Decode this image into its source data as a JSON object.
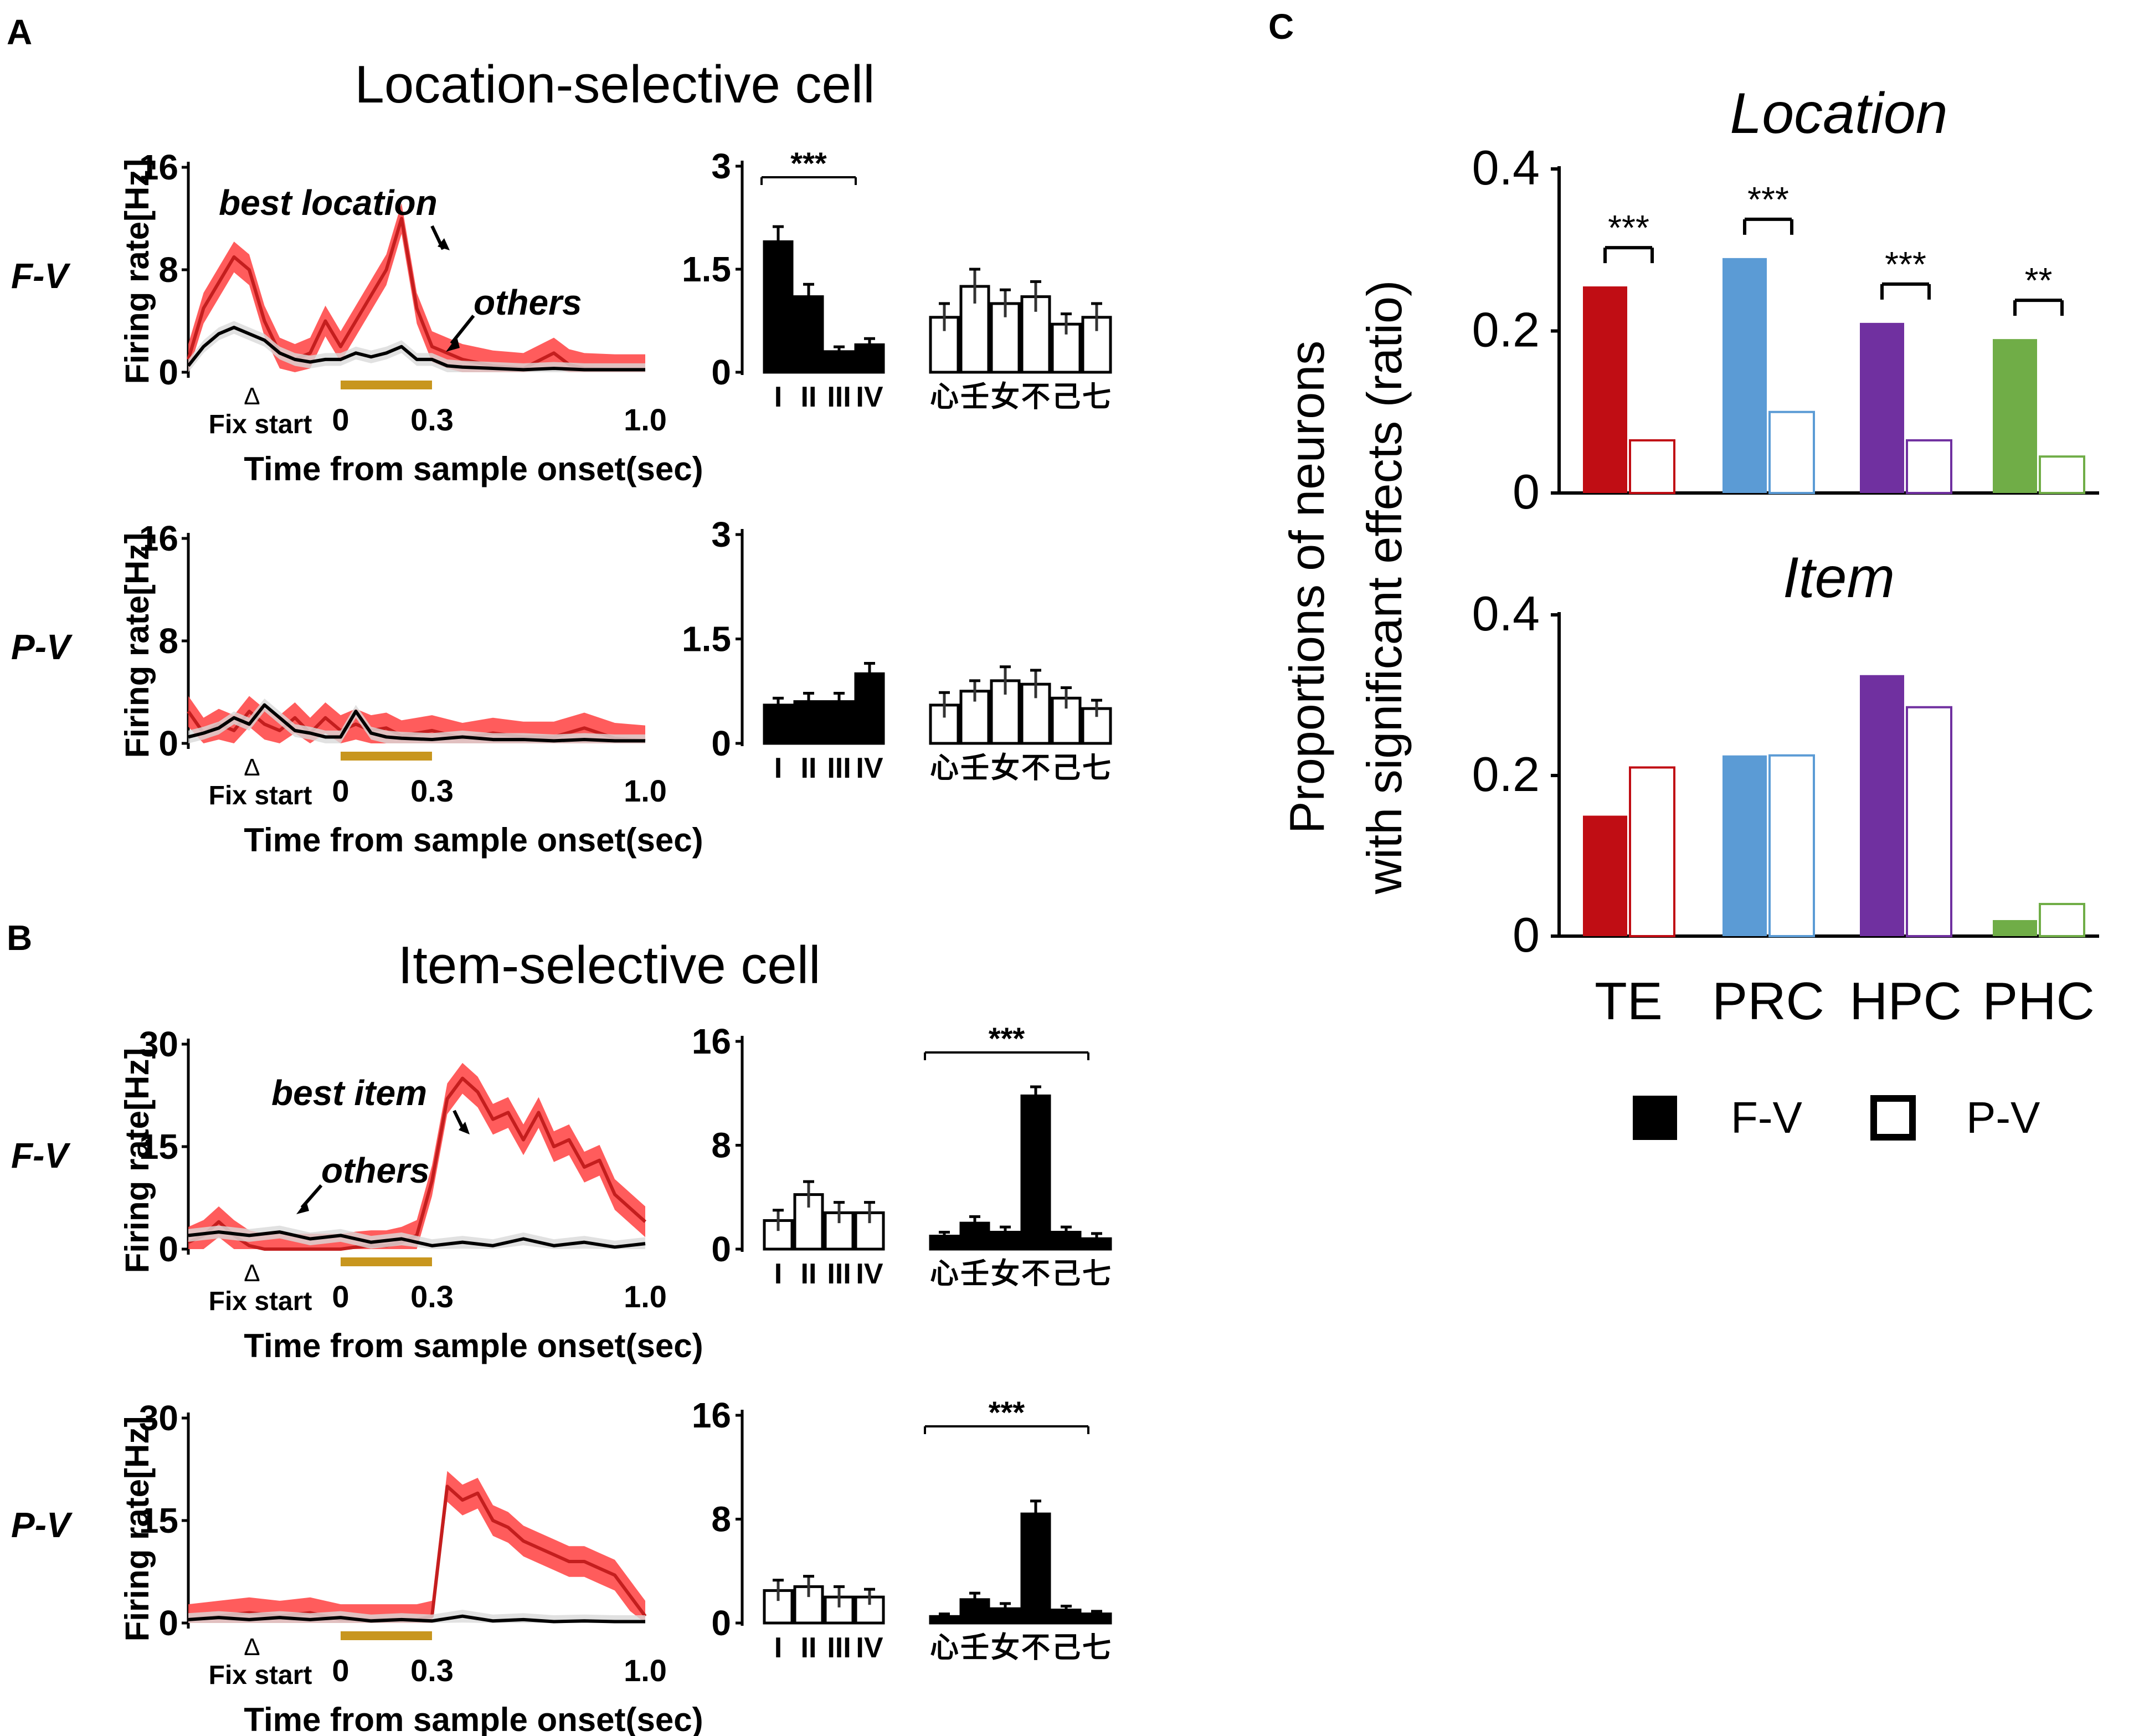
{
  "panels": {
    "A": {
      "letter": "A",
      "title": "Location-selective cell"
    },
    "B": {
      "letter": "B",
      "title": "Item-selective cell"
    },
    "C": {
      "letter": "C"
    }
  },
  "conditions": {
    "fv": "F-V",
    "pv": "P-V"
  },
  "psth_common": {
    "ylabel": "Firing rate[Hz]",
    "xlabel": "Time from sample onset(sec)",
    "fix_label": "Fix start",
    "fix_marker": "Δ",
    "x_ticks": [
      "0",
      "0.3",
      "1.0"
    ],
    "x_range": [
      -0.5,
      1.0
    ],
    "sample_window": [
      0,
      0.3
    ],
    "sample_bar_color": "#c8961e"
  },
  "location_labels": [
    "I",
    "II",
    "III",
    "IV"
  ],
  "item_labels": [
    "心",
    "壬",
    "女",
    "不",
    "己",
    "七"
  ],
  "legend": {
    "fv": "F-V",
    "pv": "P-V"
  },
  "chart_data": [
    {
      "id": "A-FV-psth",
      "type": "line",
      "ylim": [
        0,
        16
      ],
      "y_ticks": [
        "16",
        "8",
        "0"
      ],
      "annotations": [
        "best location",
        "others"
      ],
      "series": [
        {
          "name": "best location",
          "color": "#c41e1e",
          "x": [
            -0.5,
            -0.45,
            -0.4,
            -0.35,
            -0.3,
            -0.25,
            -0.2,
            -0.15,
            -0.1,
            -0.05,
            0,
            0.05,
            0.1,
            0.15,
            0.2,
            0.25,
            0.3,
            0.35,
            0.4,
            0.5,
            0.6,
            0.7,
            0.75,
            0.8,
            0.9,
            1.0
          ],
          "y": [
            1,
            5,
            7,
            9,
            8,
            4,
            1.5,
            1,
            1.5,
            4,
            2,
            4,
            6,
            8,
            12,
            5,
            2,
            1.5,
            1,
            0.5,
            0.3,
            1.5,
            0.6,
            0.3,
            0.2,
            0.2
          ]
        },
        {
          "name": "others",
          "color": "#000000",
          "x": [
            -0.5,
            -0.45,
            -0.4,
            -0.35,
            -0.3,
            -0.25,
            -0.2,
            -0.15,
            -0.1,
            -0.05,
            0,
            0.05,
            0.1,
            0.15,
            0.2,
            0.25,
            0.3,
            0.35,
            0.4,
            0.5,
            0.6,
            0.7,
            0.8,
            0.9,
            1.0
          ],
          "y": [
            0.5,
            2,
            3,
            3.5,
            3,
            2.5,
            1.5,
            1,
            0.8,
            1,
            1,
            1.5,
            1.2,
            1.5,
            2,
            1,
            1,
            0.5,
            0.4,
            0.3,
            0.2,
            0.3,
            0.2,
            0.2,
            0.2
          ]
        }
      ]
    },
    {
      "id": "A-PV-psth",
      "type": "line",
      "ylim": [
        0,
        16
      ],
      "y_ticks": [
        "16",
        "8",
        "0"
      ],
      "series": [
        {
          "name": "best location",
          "color": "#c41e1e",
          "x": [
            -0.5,
            -0.45,
            -0.4,
            -0.35,
            -0.3,
            -0.25,
            -0.2,
            -0.15,
            -0.1,
            -0.05,
            0,
            0.05,
            0.1,
            0.15,
            0.2,
            0.3,
            0.4,
            0.5,
            0.6,
            0.7,
            0.8,
            0.9,
            1.0
          ],
          "y": [
            2.5,
            0.8,
            1.5,
            1,
            2.5,
            1.5,
            1,
            2,
            0.8,
            2,
            1,
            1.5,
            1,
            1.2,
            0.6,
            1,
            0.4,
            0.8,
            0.5,
            0.5,
            1.2,
            0.4,
            0.2
          ]
        },
        {
          "name": "others",
          "color": "#000000",
          "x": [
            -0.5,
            -0.45,
            -0.4,
            -0.35,
            -0.3,
            -0.25,
            -0.2,
            -0.15,
            -0.1,
            -0.05,
            0,
            0.05,
            0.1,
            0.15,
            0.2,
            0.3,
            0.4,
            0.5,
            0.6,
            0.7,
            0.8,
            0.9,
            1.0
          ],
          "y": [
            0.5,
            0.8,
            1.2,
            2,
            1.5,
            3,
            2,
            1,
            0.8,
            0.5,
            0.5,
            2.5,
            0.8,
            0.5,
            0.4,
            0.3,
            0.5,
            0.3,
            0.3,
            0.2,
            0.3,
            0.2,
            0.2
          ]
        }
      ]
    },
    {
      "id": "B-FV-psth",
      "type": "line",
      "ylim": [
        0,
        30
      ],
      "y_ticks": [
        "30",
        "15",
        "0"
      ],
      "annotations": [
        "best item",
        "others"
      ],
      "series": [
        {
          "name": "best item",
          "color": "#c41e1e",
          "x": [
            -0.5,
            -0.45,
            -0.4,
            -0.35,
            -0.3,
            -0.25,
            -0.2,
            -0.15,
            -0.1,
            -0.05,
            0,
            0.05,
            0.1,
            0.15,
            0.2,
            0.25,
            0.3,
            0.35,
            0.4,
            0.45,
            0.5,
            0.55,
            0.6,
            0.65,
            0.7,
            0.75,
            0.8,
            0.85,
            0.9,
            0.95,
            1.0
          ],
          "y": [
            1,
            2,
            4,
            2,
            0.5,
            0,
            0,
            0,
            0,
            0,
            0,
            0.3,
            0.5,
            0.5,
            1,
            2,
            10,
            22,
            25,
            23,
            19,
            20,
            16,
            20,
            15,
            16,
            12,
            13,
            8,
            6,
            4
          ]
        },
        {
          "name": "others",
          "color": "#000000",
          "x": [
            -0.5,
            -0.4,
            -0.3,
            -0.2,
            -0.1,
            0,
            0.1,
            0.2,
            0.3,
            0.4,
            0.5,
            0.6,
            0.7,
            0.8,
            0.9,
            1.0
          ],
          "y": [
            2,
            2.5,
            2,
            2.5,
            1.5,
            2,
            1,
            1.5,
            0.5,
            1,
            0.5,
            1.5,
            0.5,
            1,
            0.3,
            0.8
          ]
        }
      ]
    },
    {
      "id": "B-PV-psth",
      "type": "line",
      "ylim": [
        0,
        30
      ],
      "y_ticks": [
        "30",
        "15",
        "0"
      ],
      "series": [
        {
          "name": "best item",
          "color": "#c41e1e",
          "x": [
            -0.5,
            -0.4,
            -0.3,
            -0.2,
            -0.1,
            0,
            0.1,
            0.2,
            0.25,
            0.3,
            0.35,
            0.4,
            0.45,
            0.5,
            0.55,
            0.6,
            0.65,
            0.7,
            0.75,
            0.8,
            0.85,
            0.9,
            0.95,
            1.0
          ],
          "y": [
            0.5,
            1,
            1.5,
            1,
            1.5,
            0.5,
            0.5,
            0.5,
            0.5,
            1,
            20,
            18,
            19,
            15,
            14,
            12,
            11,
            10,
            9,
            9,
            8,
            7,
            4,
            1
          ]
        },
        {
          "name": "others",
          "color": "#000000",
          "x": [
            -0.5,
            -0.4,
            -0.3,
            -0.2,
            -0.1,
            0,
            0.1,
            0.2,
            0.3,
            0.4,
            0.5,
            0.6,
            0.7,
            0.8,
            0.9,
            1.0
          ],
          "y": [
            0.5,
            0.8,
            0.5,
            0.8,
            0.5,
            0.8,
            0.3,
            0.5,
            0.3,
            1,
            0.3,
            0.5,
            0.2,
            0.3,
            0.2,
            0.2
          ]
        }
      ]
    },
    {
      "id": "A-FV-bars",
      "type": "bar",
      "ylim": [
        0,
        3
      ],
      "y_ticks": [
        "3",
        "1.5",
        "0"
      ],
      "sig": "***",
      "sig_group": "location",
      "location_values": [
        1.9,
        1.1,
        0.3,
        0.4
      ],
      "location_err": [
        0.22,
        0.18,
        0.07,
        0.09
      ],
      "location_filled": true,
      "item_values": [
        0.8,
        1.25,
        1.0,
        1.1,
        0.7,
        0.8
      ],
      "item_err": [
        0.2,
        0.25,
        0.2,
        0.22,
        0.15,
        0.2
      ],
      "item_filled": false
    },
    {
      "id": "A-PV-bars",
      "type": "bar",
      "ylim": [
        0,
        3
      ],
      "y_ticks": [
        "3",
        "1.5",
        "0"
      ],
      "location_values": [
        0.55,
        0.6,
        0.6,
        1.0
      ],
      "location_err": [
        0.1,
        0.12,
        0.12,
        0.15
      ],
      "location_filled": true,
      "item_values": [
        0.55,
        0.75,
        0.9,
        0.85,
        0.65,
        0.5
      ],
      "item_err": [
        0.18,
        0.15,
        0.2,
        0.2,
        0.15,
        0.12
      ],
      "item_filled": false
    },
    {
      "id": "B-FV-bars",
      "type": "bar",
      "ylim": [
        0,
        16
      ],
      "y_ticks": [
        "16",
        "8",
        "0"
      ],
      "sig": "***",
      "sig_group": "item",
      "location_values": [
        2.2,
        4.2,
        2.8,
        2.8
      ],
      "location_err": [
        0.8,
        1.0,
        0.8,
        0.8
      ],
      "location_filled": false,
      "item_values": [
        1.0,
        2.0,
        1.3,
        11.8,
        1.3,
        0.8
      ],
      "item_err": [
        0.3,
        0.5,
        0.4,
        0.7,
        0.4,
        0.4
      ],
      "item_filled": true
    },
    {
      "id": "B-PV-bars",
      "type": "bar",
      "ylim": [
        0,
        16
      ],
      "y_ticks": [
        "16",
        "8",
        "0"
      ],
      "sig": "***",
      "sig_group": "item",
      "location_values": [
        2.5,
        2.8,
        2.0,
        2.0
      ],
      "location_err": [
        0.8,
        0.8,
        0.8,
        0.6
      ],
      "location_filled": false,
      "item_values": [
        0.5,
        1.8,
        1.1,
        8.4,
        1.0,
        0.7
      ],
      "item_err": [
        0.2,
        0.5,
        0.4,
        1.0,
        0.3,
        0.2
      ],
      "item_filled": true
    },
    {
      "id": "C-location",
      "type": "bar",
      "title": "Location",
      "ylim": [
        0,
        0.4
      ],
      "y_ticks": [
        "0.4",
        "0.2",
        "0"
      ],
      "categories": [
        "TE",
        "PRC",
        "HPC",
        "PHC"
      ],
      "colors": [
        "#c00d14",
        "#5b9bd5",
        "#7030a0",
        "#70ad47"
      ],
      "series": [
        {
          "name": "F-V",
          "values": [
            0.255,
            0.29,
            0.21,
            0.19
          ]
        },
        {
          "name": "P-V",
          "values": [
            0.065,
            0.1,
            0.065,
            0.045
          ]
        }
      ],
      "sig": [
        "***",
        "***",
        "***",
        "**"
      ]
    },
    {
      "id": "C-item",
      "type": "bar",
      "title": "Item",
      "ylim": [
        0,
        0.4
      ],
      "y_ticks": [
        "0.4",
        "0.2",
        "0"
      ],
      "categories": [
        "TE",
        "PRC",
        "HPC",
        "PHC"
      ],
      "colors": [
        "#c00d14",
        "#5b9bd5",
        "#7030a0",
        "#70ad47"
      ],
      "series": [
        {
          "name": "F-V",
          "values": [
            0.15,
            0.225,
            0.325,
            0.02
          ]
        },
        {
          "name": "P-V",
          "values": [
            0.21,
            0.225,
            0.285,
            0.04
          ]
        }
      ],
      "ylabel_lines": [
        "Proportions of neurons",
        "with significant effects (ratio)"
      ]
    }
  ]
}
